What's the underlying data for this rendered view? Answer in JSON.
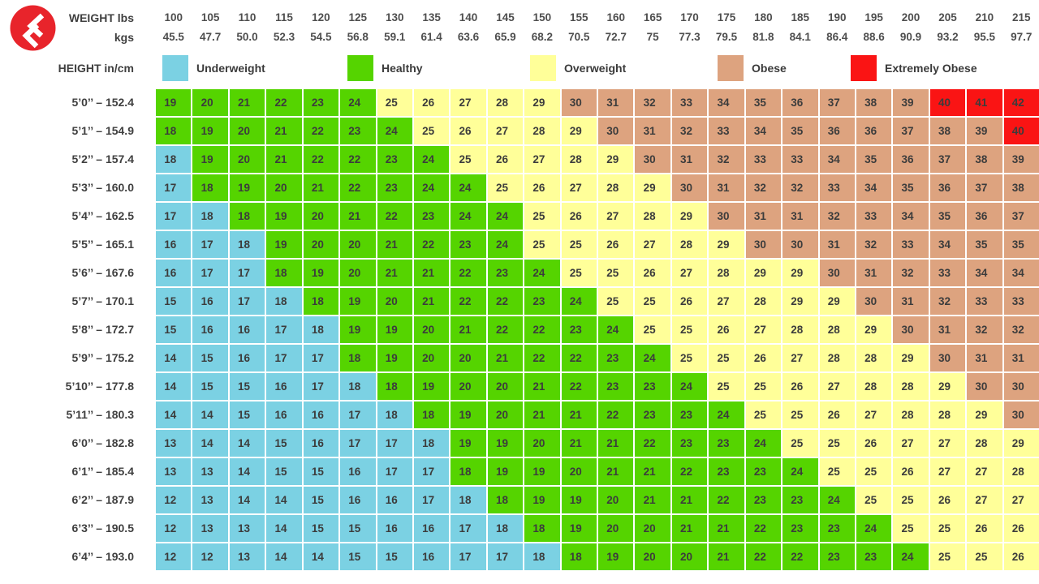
{
  "logo": {
    "icon": "insider-logo",
    "bg_color": "#e8242b",
    "glyph_color": "#ffffff"
  },
  "header": {
    "weight_lbs_label": "WEIGHT lbs",
    "weight_kgs_label": "kgs",
    "height_label": "HEIGHT in/cm"
  },
  "chart_data": {
    "type": "heatmap",
    "x_axis_label": "WEIGHT lbs / kgs",
    "y_axis_label": "HEIGHT in/cm",
    "x_lbs": [
      100,
      105,
      110,
      115,
      120,
      125,
      130,
      135,
      140,
      145,
      150,
      155,
      160,
      165,
      170,
      175,
      180,
      185,
      190,
      195,
      200,
      205,
      210,
      215
    ],
    "x_kgs": [
      "45.5",
      "47.7",
      "50.0",
      "52.3",
      "54.5",
      "56.8",
      "59.1",
      "61.4",
      "63.6",
      "65.9",
      "68.2",
      "70.5",
      "72.7",
      "75",
      "77.3",
      "79.5",
      "81.8",
      "84.1",
      "86.4",
      "88.6",
      "90.9",
      "93.2",
      "95.5",
      "97.7"
    ],
    "palette": {
      "U": "#7bd1e3",
      "H": "#55d400",
      "O": "#ffff99",
      "B": "#dda37f",
      "E": "#fa1414"
    },
    "legend": [
      {
        "key": "U",
        "label": "Underweight"
      },
      {
        "key": "H",
        "label": "Healthy"
      },
      {
        "key": "O",
        "label": "Overweight"
      },
      {
        "key": "B",
        "label": "Obese"
      },
      {
        "key": "E",
        "label": "Extremely Obese"
      }
    ],
    "rows": [
      {
        "height": "5’0’’ – 152.4",
        "values": [
          19,
          20,
          21,
          22,
          23,
          24,
          25,
          26,
          27,
          28,
          29,
          30,
          31,
          32,
          33,
          34,
          35,
          36,
          37,
          38,
          39,
          40,
          41,
          42
        ],
        "cats": "HHHHHHOOOOOBBBBBBBBBBEEE"
      },
      {
        "height": "5’1’’ – 154.9",
        "values": [
          18,
          19,
          20,
          21,
          22,
          23,
          24,
          25,
          26,
          27,
          28,
          29,
          30,
          31,
          32,
          33,
          34,
          35,
          36,
          36,
          37,
          38,
          39,
          40
        ],
        "cats": "HHHHHHHOOOOOBBBBBBBBBBBE"
      },
      {
        "height": "5’2’’ – 157.4",
        "values": [
          18,
          19,
          20,
          21,
          22,
          22,
          23,
          24,
          25,
          26,
          27,
          28,
          29,
          30,
          31,
          32,
          33,
          33,
          34,
          35,
          36,
          37,
          38,
          39
        ],
        "cats": "UHHHHHHHOOOOOBBBBBBBBBBB"
      },
      {
        "height": "5’3’’ – 160.0",
        "values": [
          17,
          18,
          19,
          20,
          21,
          22,
          23,
          24,
          24,
          25,
          26,
          27,
          28,
          29,
          30,
          31,
          32,
          32,
          33,
          34,
          35,
          36,
          37,
          38
        ],
        "cats": "UHHHHHHHHOOOOOBBBBBBBBBB"
      },
      {
        "height": "5’4’’ – 162.5",
        "values": [
          17,
          18,
          18,
          19,
          20,
          21,
          22,
          23,
          24,
          24,
          25,
          26,
          27,
          28,
          29,
          30,
          31,
          31,
          32,
          33,
          34,
          35,
          36,
          37
        ],
        "cats": "UUHHHHHHHHOOOOOBBBBBBBBB"
      },
      {
        "height": "5’5’’ – 165.1",
        "values": [
          16,
          17,
          18,
          19,
          20,
          20,
          21,
          22,
          23,
          24,
          25,
          25,
          26,
          27,
          28,
          29,
          30,
          30,
          31,
          32,
          33,
          34,
          35,
          35
        ],
        "cats": "UUUHHHHHHHOOOOOOBBBBBBBB"
      },
      {
        "height": "5’6’’ – 167.6",
        "values": [
          16,
          17,
          17,
          18,
          19,
          20,
          21,
          21,
          22,
          23,
          24,
          25,
          25,
          26,
          27,
          28,
          29,
          29,
          30,
          31,
          32,
          33,
          34,
          34
        ],
        "cats": "UUUHHHHHHHHOOOOOOOBBBBBB"
      },
      {
        "height": "5’7’’ – 170.1",
        "values": [
          15,
          16,
          17,
          18,
          18,
          19,
          20,
          21,
          22,
          22,
          23,
          24,
          25,
          25,
          26,
          27,
          28,
          29,
          29,
          30,
          31,
          32,
          33,
          33
        ],
        "cats": "UUUUHHHHHHHHOOOOOOOBBBBB"
      },
      {
        "height": "5’8’’ – 172.7",
        "values": [
          15,
          16,
          16,
          17,
          18,
          19,
          19,
          20,
          21,
          22,
          22,
          23,
          24,
          25,
          25,
          26,
          27,
          28,
          28,
          29,
          30,
          31,
          32,
          32
        ],
        "cats": "UUUUUHHHHHHHHOOOOOOOBBBB"
      },
      {
        "height": "5’9’’ – 175.2",
        "values": [
          14,
          15,
          16,
          17,
          17,
          18,
          19,
          20,
          20,
          21,
          22,
          22,
          23,
          24,
          25,
          25,
          26,
          27,
          28,
          28,
          29,
          30,
          31,
          31
        ],
        "cats": "UUUUUHHHHHHHHHOOOOOOOBBB"
      },
      {
        "height": "5’10’’ – 177.8",
        "values": [
          14,
          15,
          15,
          16,
          17,
          18,
          18,
          19,
          20,
          20,
          21,
          22,
          23,
          23,
          24,
          25,
          25,
          26,
          27,
          28,
          28,
          29,
          30,
          30
        ],
        "cats": "UUUUUUHHHHHHHHHOOOOOOOBB"
      },
      {
        "height": "5’11’’ – 180.3",
        "values": [
          14,
          14,
          15,
          16,
          16,
          17,
          18,
          18,
          19,
          20,
          21,
          21,
          22,
          23,
          23,
          24,
          25,
          25,
          26,
          27,
          28,
          28,
          29,
          30
        ],
        "cats": "UUUUUUUHHHHHHHHHOOOOOOOB"
      },
      {
        "height": "6’0’’ – 182.8",
        "values": [
          13,
          14,
          14,
          15,
          16,
          17,
          17,
          18,
          19,
          19,
          20,
          21,
          21,
          22,
          23,
          23,
          24,
          25,
          25,
          26,
          27,
          27,
          28,
          29
        ],
        "cats": "UUUUUUUUHHHHHHHHHOOOOOOO"
      },
      {
        "height": "6’1’’ – 185.4",
        "values": [
          13,
          13,
          14,
          15,
          15,
          16,
          17,
          17,
          18,
          19,
          19,
          20,
          21,
          21,
          22,
          23,
          23,
          24,
          25,
          25,
          26,
          27,
          27,
          28
        ],
        "cats": "UUUUUUUUHHHHHHHHHHOOOOOO"
      },
      {
        "height": "6’2’’ – 187.9",
        "values": [
          12,
          13,
          14,
          14,
          15,
          16,
          16,
          17,
          18,
          18,
          19,
          19,
          20,
          21,
          21,
          22,
          23,
          23,
          24,
          25,
          25,
          26,
          27,
          27
        ],
        "cats": "UUUUUUUUUHHHHHHHHHHOOOOO"
      },
      {
        "height": "6’3’’ – 190.5",
        "values": [
          12,
          13,
          13,
          14,
          15,
          15,
          16,
          16,
          17,
          18,
          18,
          19,
          20,
          20,
          21,
          21,
          22,
          23,
          23,
          24,
          25,
          25,
          26,
          26
        ],
        "cats": "UUUUUUUUUUHHHHHHHHHHOOOO"
      },
      {
        "height": "6’4’’ – 193.0",
        "values": [
          12,
          12,
          13,
          14,
          14,
          15,
          15,
          16,
          17,
          17,
          18,
          18,
          19,
          20,
          20,
          21,
          22,
          22,
          23,
          23,
          24,
          25,
          25,
          26
        ],
        "cats": "UUUUUUUUUUUHHHHHHHHHHOOO"
      }
    ]
  }
}
